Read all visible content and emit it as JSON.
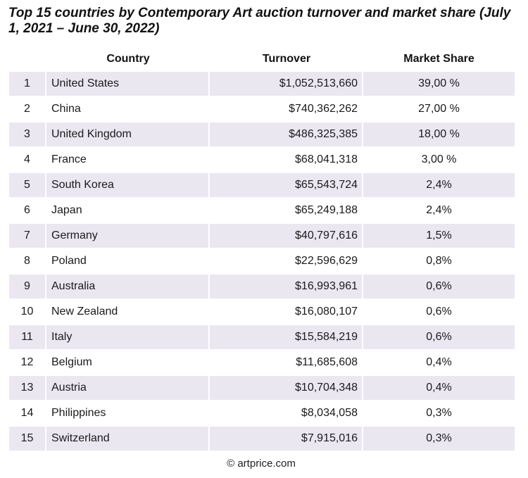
{
  "title": "Top 15 countries by Contemporary Art auction turnover and market share (July 1, 2021 – June 30, 2022)",
  "footer": "© artprice.com",
  "chart_data": {
    "type": "table",
    "title": "Top 15 countries by Contemporary Art auction turnover and market share (July 1, 2021 – June 30, 2022)",
    "columns": [
      "",
      "Country",
      "Turnover",
      "Market Share"
    ],
    "rows": [
      {
        "rank": "1",
        "country": "United States",
        "turnover": "$1,052,513,660",
        "share": "39,00 %"
      },
      {
        "rank": "2",
        "country": "China",
        "turnover": "$740,362,262",
        "share": "27,00 %"
      },
      {
        "rank": "3",
        "country": "United Kingdom",
        "turnover": "$486,325,385",
        "share": "18,00 %"
      },
      {
        "rank": "4",
        "country": "France",
        "turnover": "$68,041,318",
        "share": "3,00 %"
      },
      {
        "rank": "5",
        "country": "South Korea",
        "turnover": "$65,543,724",
        "share": "2,4%"
      },
      {
        "rank": "6",
        "country": "Japan",
        "turnover": "$65,249,188",
        "share": "2,4%"
      },
      {
        "rank": "7",
        "country": "Germany",
        "turnover": "$40,797,616",
        "share": "1,5%"
      },
      {
        "rank": "8",
        "country": "Poland",
        "turnover": "$22,596,629",
        "share": "0,8%"
      },
      {
        "rank": "9",
        "country": "Australia",
        "turnover": "$16,993,961",
        "share": "0,6%"
      },
      {
        "rank": "10",
        "country": "New Zealand",
        "turnover": "$16,080,107",
        "share": "0,6%"
      },
      {
        "rank": "11",
        "country": "Italy",
        "turnover": "$15,584,219",
        "share": "0,6%"
      },
      {
        "rank": "12",
        "country": "Belgium",
        "turnover": "$11,685,608",
        "share": "0,4%"
      },
      {
        "rank": "13",
        "country": "Austria",
        "turnover": "$10,704,348",
        "share": "0,4%"
      },
      {
        "rank": "14",
        "country": "Philippines",
        "turnover": "$8,034,058",
        "share": "0,3%"
      },
      {
        "rank": "15",
        "country": "Switzerland",
        "turnover": "$7,915,016",
        "share": "0,3%"
      }
    ],
    "colors": {
      "stripe": "#ebe7f1",
      "background": "#ffffff"
    }
  }
}
